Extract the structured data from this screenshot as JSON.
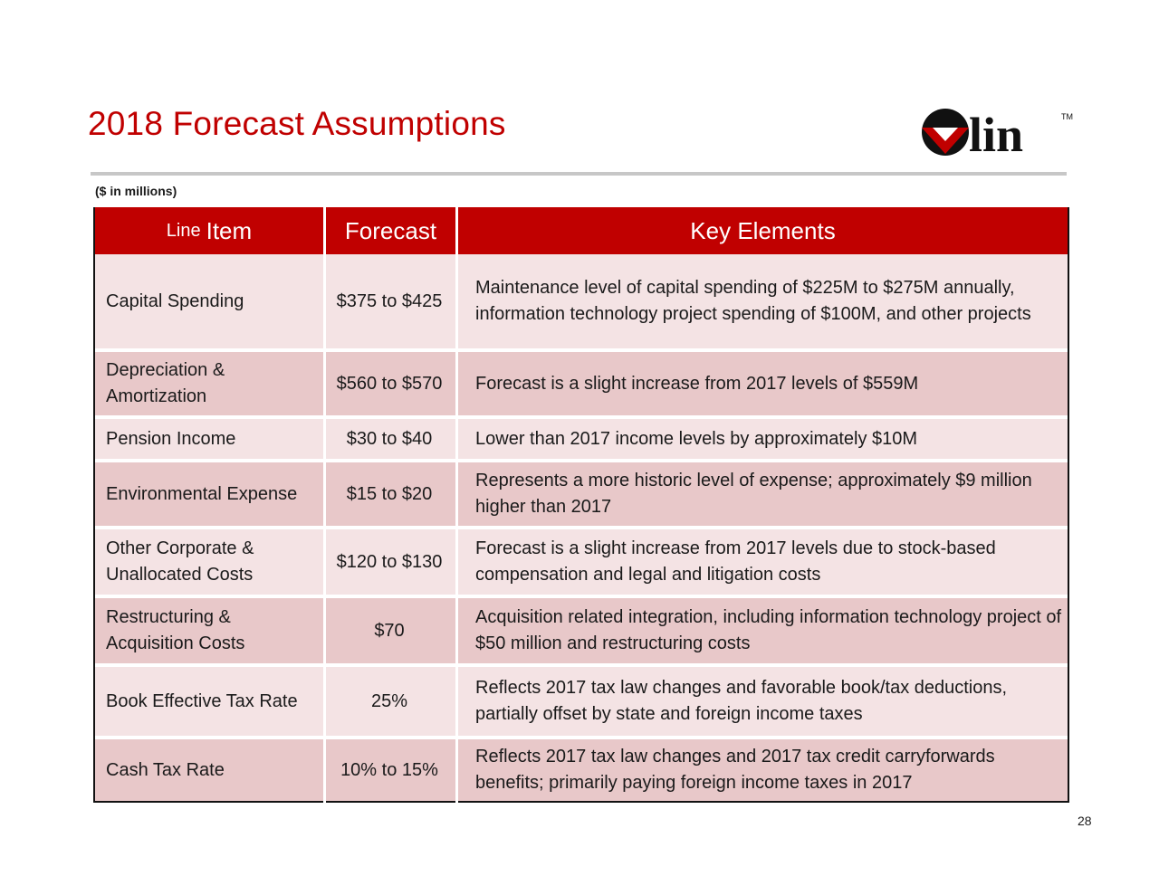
{
  "slide": {
    "title": "2018 Forecast Assumptions",
    "units": "($ in millions)",
    "page_number": "28",
    "logo_text": "lin",
    "logo_tm": "TM"
  },
  "colors": {
    "accent": "#c00000",
    "row_light": "#f4e3e4",
    "row_dark": "#e8c8c9"
  },
  "table": {
    "headers": {
      "line_prefix": "Line",
      "line_item": "Item",
      "forecast": "Forecast",
      "key_elements": "Key Elements"
    },
    "rows": [
      {
        "item": "Capital Spending",
        "forecast": "$375 to $425",
        "key": "Maintenance level of capital spending of $225M to $275M annually, information technology project spending of $100M, and other projects"
      },
      {
        "item": "Depreciation & Amortization",
        "forecast": "$560 to $570",
        "key": "Forecast is a slight increase from 2017 levels of $559M"
      },
      {
        "item": "Pension Income",
        "forecast": "$30 to $40",
        "key": "Lower than 2017 income levels by approximately $10M"
      },
      {
        "item": "Environmental Expense",
        "forecast": "$15 to $20",
        "key": "Represents a more historic level of expense; approximately $9 million higher than 2017"
      },
      {
        "item": "Other Corporate & Unallocated Costs",
        "forecast": "$120 to $130",
        "key": "Forecast is a slight increase from 2017 levels due to stock-based compensation and legal and litigation costs"
      },
      {
        "item": "Restructuring & Acquisition Costs",
        "forecast": "$70",
        "key": "Acquisition related integration, including information technology project of $50 million and restructuring costs"
      },
      {
        "item": "Book Effective Tax Rate",
        "forecast": "25%",
        "key": "Reflects 2017 tax law changes and favorable book/tax deductions, partially offset by state and foreign income taxes"
      },
      {
        "item": "Cash Tax Rate",
        "forecast": "10% to 15%",
        "key": "Reflects 2017 tax law changes and 2017 tax credit carryforwards benefits; primarily paying foreign income taxes in 2017"
      }
    ]
  }
}
